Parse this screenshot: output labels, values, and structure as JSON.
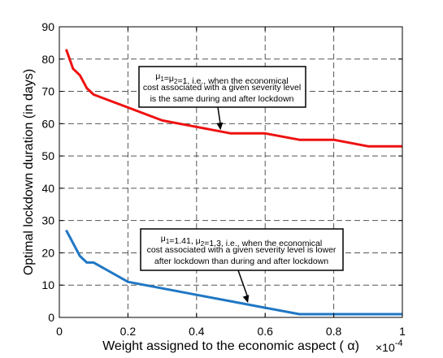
{
  "chart_data": {
    "type": "line",
    "title": "",
    "xlabel": "Weight assigned to the economic aspect ( α)",
    "ylabel": "Optimal lockdown duration (in days)",
    "x_multiplier": "×10",
    "x_multiplier_exp": "-4",
    "xlim": [
      0,
      1
    ],
    "ylim": [
      0,
      90
    ],
    "xticks": [
      0,
      0.2,
      0.4,
      0.6,
      0.8,
      1
    ],
    "xtick_labels": [
      "0",
      "0.2",
      "0.4",
      "0.6",
      "0.8",
      "1"
    ],
    "yticks": [
      0,
      10,
      20,
      30,
      40,
      50,
      60,
      70,
      80,
      90
    ],
    "ytick_labels": [
      "0",
      "10",
      "20",
      "30",
      "40",
      "50",
      "60",
      "70",
      "80",
      "90"
    ],
    "grid": true,
    "series": [
      {
        "color": "#ee1111",
        "x": [
          0.02,
          0.04,
          0.06,
          0.07,
          0.08,
          0.1,
          0.2,
          0.3,
          0.4,
          0.5,
          0.6,
          0.7,
          0.8,
          0.9,
          1.0
        ],
        "y": [
          83,
          77,
          75,
          73,
          71,
          69,
          65,
          61,
          59,
          57,
          57,
          55,
          55,
          53,
          53
        ]
      },
      {
        "color": "#1f77c4",
        "x": [
          0.02,
          0.04,
          0.06,
          0.08,
          0.1,
          0.2,
          0.3,
          0.4,
          0.5,
          0.6,
          0.7,
          0.8,
          0.9,
          1.0
        ],
        "y": [
          27,
          23,
          19,
          17,
          17,
          11,
          9,
          7,
          5,
          3,
          1,
          1,
          1,
          1
        ]
      }
    ],
    "annotations": [
      {
        "series": 0,
        "lines": [
          "μ1=μ2=1, i.e., when the economical",
          "cost associated with a given severity level",
          "is the same during and after lockdown"
        ],
        "arrow_to": [
          0.47,
          58
        ]
      },
      {
        "series": 1,
        "lines": [
          "μ1=1.41, μ2=1.3, i.e., when the economical",
          "cost associated with a given severity level is lower",
          "after lockdown than during and after lockdown"
        ],
        "arrow_to": [
          0.55,
          4.5
        ]
      }
    ]
  }
}
